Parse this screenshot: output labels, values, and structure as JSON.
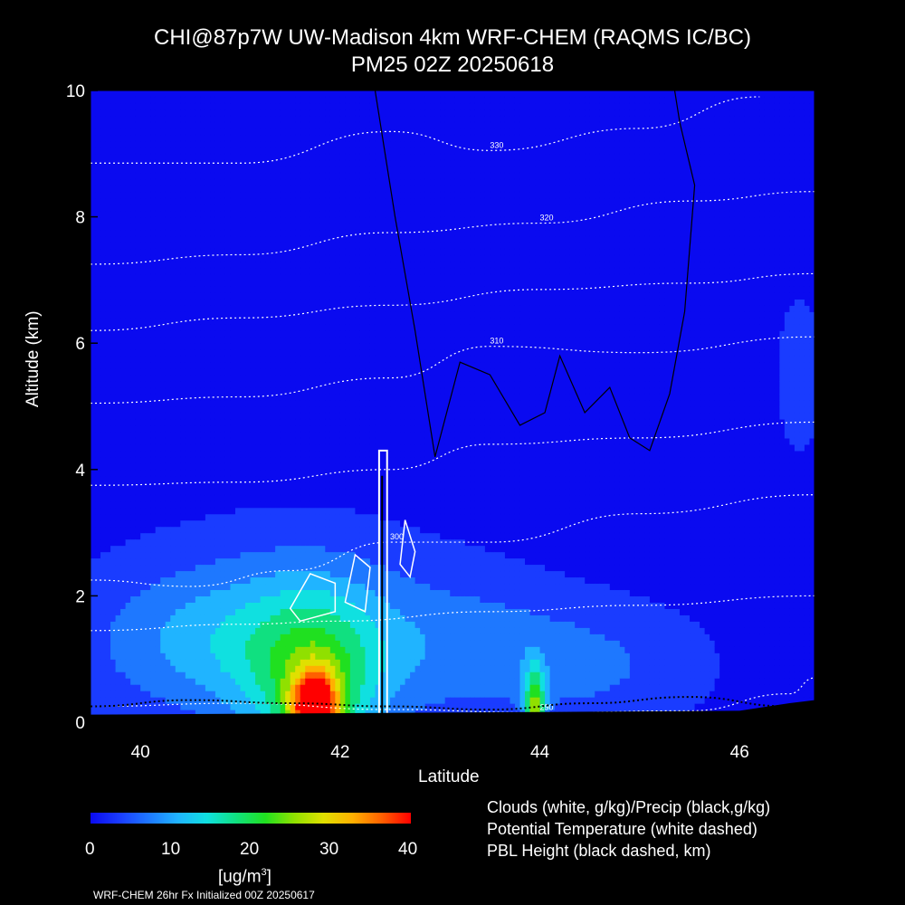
{
  "title_line1": "CHI@87p7W UW-Madison 4km WRF-CHEM (RAQMS IC/BC)",
  "title_line2": "PM25 02Z 20250618",
  "legend": {
    "clouds": "Clouds (white, g/kg)/Precip (black,g/kg)",
    "theta": "Potential Temperature (white dashed)",
    "pbl": "PBL Height (black dashed, km)"
  },
  "colorbar": {
    "ticks": [
      "0",
      "10",
      "20",
      "30",
      "40"
    ],
    "units_main": "[ug/m",
    "units_sup": "3",
    "units_close": "]",
    "colors": [
      "#0a0af0",
      "#1a3cff",
      "#1e78ff",
      "#20b4ff",
      "#10e0e0",
      "#10e080",
      "#20e020",
      "#90e000",
      "#e0e000",
      "#ffb000",
      "#ff6000",
      "#ff0000"
    ]
  },
  "footer": "WRF-CHEM 26hr  Fx Initialized 00Z 20250617",
  "chart_data": {
    "type": "heatmap",
    "variable": "PM25",
    "title": "CHI@87p7W UW-Madison 4km WRF-CHEM (RAQMS IC/BC)",
    "subtitle": "PM25 02Z 20250618",
    "xlabel": "Latitude",
    "ylabel": "Altitude (km)",
    "xlim": [
      39.5,
      46.75
    ],
    "ylim": [
      0,
      10
    ],
    "xticks": [
      40,
      42,
      44,
      46
    ],
    "yticks": [
      0,
      2,
      4,
      6,
      8,
      10
    ],
    "xtick_labels": [
      "40",
      "42",
      "44",
      "46"
    ],
    "ytick_labels": [
      "0",
      "2",
      "4",
      "6",
      "8",
      "10"
    ],
    "colorscale_range": [
      0,
      40
    ],
    "background_concentration": 2,
    "pm25_features": [
      {
        "lat": 41.75,
        "alt": 0.15,
        "value": 30,
        "sx": 0.18,
        "sy": 0.45
      },
      {
        "lat": 41.75,
        "alt": 0.6,
        "value": 14,
        "sx": 0.5,
        "sy": 1.0
      },
      {
        "lat": 43.95,
        "alt": 0.2,
        "value": 20,
        "sx": 0.07,
        "sy": 0.45
      },
      {
        "lat": 41.5,
        "alt": 1.5,
        "value": 7,
        "sx": 1.1,
        "sy": 1.0
      },
      {
        "lat": 40.5,
        "alt": 1.2,
        "value": 5,
        "sx": 0.8,
        "sy": 0.8
      },
      {
        "lat": 43.3,
        "alt": 1.2,
        "value": 4,
        "sx": 0.7,
        "sy": 0.8
      },
      {
        "lat": 44.5,
        "alt": 0.9,
        "value": 5,
        "sx": 0.8,
        "sy": 0.7
      },
      {
        "lat": 46.6,
        "alt": 5.5,
        "value": 4,
        "sx": 0.15,
        "sy": 0.8
      }
    ],
    "theta_contours": [
      {
        "label": "290",
        "points": [
          [
            39.5,
            0.25
          ],
          [
            41.0,
            0.3
          ],
          [
            42.5,
            0.2
          ],
          [
            44.0,
            0.15
          ],
          [
            45.5,
            0.18
          ],
          [
            46.5,
            0.45
          ],
          [
            46.75,
            0.7
          ]
        ]
      },
      {
        "label": "",
        "points": [
          [
            39.5,
            1.45
          ],
          [
            41.0,
            1.55
          ],
          [
            42.0,
            1.6
          ],
          [
            43.5,
            1.75
          ],
          [
            45.0,
            1.85
          ],
          [
            46.75,
            2.0
          ]
        ]
      },
      {
        "label": "300",
        "points": [
          [
            39.5,
            2.25
          ],
          [
            40.5,
            2.15
          ],
          [
            41.5,
            2.4
          ],
          [
            42.5,
            2.85
          ],
          [
            43.5,
            2.85
          ],
          [
            45.0,
            3.3
          ],
          [
            46.75,
            3.6
          ]
        ]
      },
      {
        "label": "",
        "points": [
          [
            39.5,
            3.75
          ],
          [
            41.0,
            3.8
          ],
          [
            42.5,
            4.0
          ],
          [
            43.5,
            4.4
          ],
          [
            45.0,
            4.5
          ],
          [
            46.75,
            4.75
          ]
        ]
      },
      {
        "label": "310",
        "points": [
          [
            39.5,
            5.05
          ],
          [
            41.0,
            5.15
          ],
          [
            42.5,
            5.45
          ],
          [
            43.5,
            5.95
          ],
          [
            45.0,
            5.85
          ],
          [
            46.75,
            6.1
          ]
        ]
      },
      {
        "label": "",
        "points": [
          [
            39.5,
            6.2
          ],
          [
            41.0,
            6.4
          ],
          [
            42.5,
            6.6
          ],
          [
            44.0,
            6.85
          ],
          [
            45.5,
            6.95
          ],
          [
            46.75,
            7.1
          ]
        ]
      },
      {
        "label": "320",
        "points": [
          [
            39.5,
            7.25
          ],
          [
            41.0,
            7.4
          ],
          [
            42.5,
            7.75
          ],
          [
            44.0,
            7.9
          ],
          [
            45.5,
            8.25
          ],
          [
            46.75,
            8.4
          ]
        ]
      },
      {
        "label": "330",
        "points": [
          [
            39.5,
            8.85
          ],
          [
            41.0,
            8.85
          ],
          [
            42.5,
            9.35
          ],
          [
            43.5,
            9.05
          ],
          [
            45.0,
            9.4
          ],
          [
            46.2,
            9.9
          ]
        ]
      }
    ],
    "cloud_contours_label": "0.1",
    "pbl_height_km_approx": [
      [
        39.5,
        0.25
      ],
      [
        40.5,
        0.35
      ],
      [
        41.5,
        0.3
      ],
      [
        42.5,
        0.25
      ],
      [
        43.5,
        0.2
      ],
      [
        44.5,
        0.3
      ],
      [
        45.5,
        0.4
      ],
      [
        46.5,
        0.25
      ]
    ]
  }
}
